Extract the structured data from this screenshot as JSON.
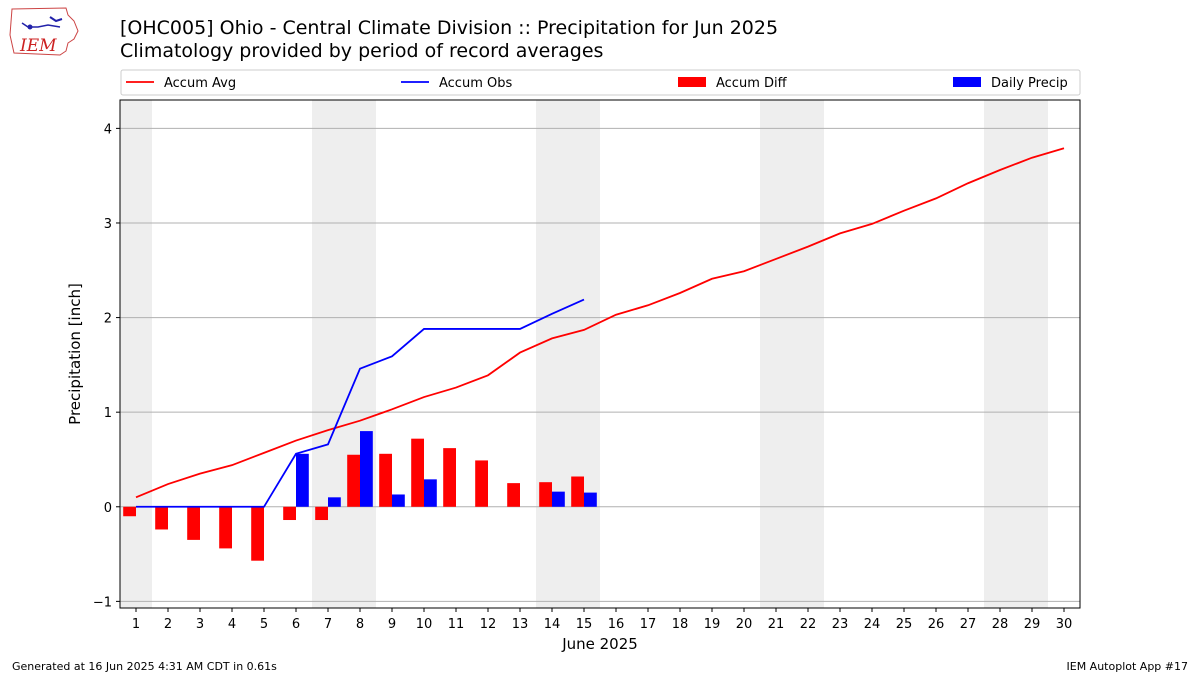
{
  "header": {
    "title": "[OHC005] Ohio - Central Climate Division :: Precipitation for Jun 2025",
    "subtitle": "Climatology provided by period of record averages",
    "logo_text": "IEM"
  },
  "footer": {
    "generated": "Generated at 16 Jun 2025 4:31 AM CDT in 0.61s",
    "app": "IEM Autoplot App #17"
  },
  "chart_data": {
    "type": "bar",
    "xlabel": "June 2025",
    "ylabel": "Precipitation [inch]",
    "xlim": [
      0.5,
      30.5
    ],
    "ylim": [
      -1.07,
      4.3
    ],
    "x_ticks": [
      1,
      2,
      3,
      4,
      5,
      6,
      7,
      8,
      9,
      10,
      11,
      12,
      13,
      14,
      15,
      16,
      17,
      18,
      19,
      20,
      21,
      22,
      23,
      24,
      25,
      26,
      27,
      28,
      29,
      30
    ],
    "y_ticks": [
      -1,
      0,
      1,
      2,
      3,
      4
    ],
    "grid": "horizontal",
    "weekend_shading": [
      [
        0.5,
        1.5
      ],
      [
        6.5,
        8.5
      ],
      [
        13.5,
        15.5
      ],
      [
        20.5,
        22.5
      ],
      [
        27.5,
        29.5
      ]
    ],
    "legend_position": "top",
    "colors": {
      "accum_avg": "#ff0000",
      "accum_obs": "#0000ff",
      "accum_diff": "#ff0000",
      "daily_precip": "#0000ff",
      "weekend": "#eeeeee",
      "grid": "#b0b0b0"
    },
    "series": [
      {
        "name": "Accum Avg",
        "kind": "line",
        "x": [
          1,
          2,
          3,
          4,
          5,
          6,
          7,
          8,
          9,
          10,
          11,
          12,
          13,
          14,
          15,
          16,
          17,
          18,
          19,
          20,
          21,
          22,
          23,
          24,
          25,
          26,
          27,
          28,
          29,
          30
        ],
        "values": [
          0.1,
          0.24,
          0.35,
          0.44,
          0.57,
          0.7,
          0.81,
          0.91,
          1.03,
          1.16,
          1.26,
          1.39,
          1.63,
          1.78,
          1.87,
          2.03,
          2.13,
          2.26,
          2.41,
          2.49,
          2.62,
          2.75,
          2.89,
          2.99,
          3.13,
          3.26,
          3.42,
          3.56,
          3.69,
          3.79
        ]
      },
      {
        "name": "Accum Obs",
        "kind": "line",
        "x": [
          1,
          2,
          3,
          4,
          5,
          6,
          7,
          8,
          9,
          10,
          11,
          12,
          13,
          14,
          15
        ],
        "values": [
          0,
          0,
          0,
          0,
          0,
          0.56,
          0.66,
          1.46,
          1.59,
          1.88,
          1.88,
          1.88,
          1.88,
          2.04,
          2.19
        ]
      },
      {
        "name": "Accum Diff",
        "kind": "bar",
        "x": [
          1,
          2,
          3,
          4,
          5,
          6,
          7,
          8,
          9,
          10,
          11,
          12,
          13,
          14,
          15
        ],
        "values": [
          -0.1,
          -0.24,
          -0.35,
          -0.44,
          -0.57,
          -0.14,
          -0.14,
          0.55,
          0.56,
          0.72,
          0.62,
          0.49,
          0.25,
          0.26,
          0.32
        ]
      },
      {
        "name": "Daily Precip",
        "kind": "bar",
        "x": [
          1,
          2,
          3,
          4,
          5,
          6,
          7,
          8,
          9,
          10,
          11,
          12,
          13,
          14,
          15
        ],
        "values": [
          0,
          0,
          0,
          0,
          0,
          0.56,
          0.1,
          0.8,
          0.13,
          0.29,
          0,
          0,
          0,
          0.16,
          0.15
        ]
      }
    ]
  }
}
